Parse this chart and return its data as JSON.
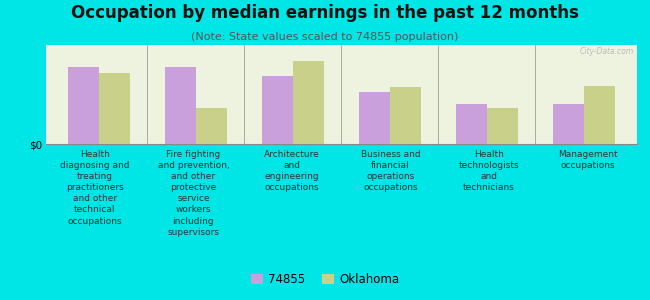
{
  "title": "Occupation by median earnings in the past 12 months",
  "subtitle": "(Note: State values scaled to 74855 population)",
  "categories": [
    "Health\ndiagnosing and\ntreating\npractitioners\nand other\ntechnical\noccupations",
    "Fire fighting\nand prevention,\nand other\nprotective\nservice\nworkers\nincluding\nsupervisors",
    "Architecture\nand\nengineering\noccupations",
    "Business and\nfinancial\noperations\noccupations",
    "Health\ntechnologists\nand\ntechnicians",
    "Management\noccupations"
  ],
  "values_74855": [
    0.82,
    0.82,
    0.72,
    0.55,
    0.42,
    0.42
  ],
  "values_oklahoma": [
    0.75,
    0.38,
    0.88,
    0.6,
    0.38,
    0.62
  ],
  "color_74855": "#c9a0dc",
  "color_oklahoma": "#c8d08a",
  "background_outer": "#00e5e5",
  "background_plot": "#eef3e0",
  "bar_width": 0.32,
  "ylabel": "$0",
  "legend_74855": "74855",
  "legend_oklahoma": "Oklahoma",
  "watermark": "City-Data.com",
  "title_fontsize": 12,
  "subtitle_fontsize": 8,
  "label_fontsize": 6.5
}
